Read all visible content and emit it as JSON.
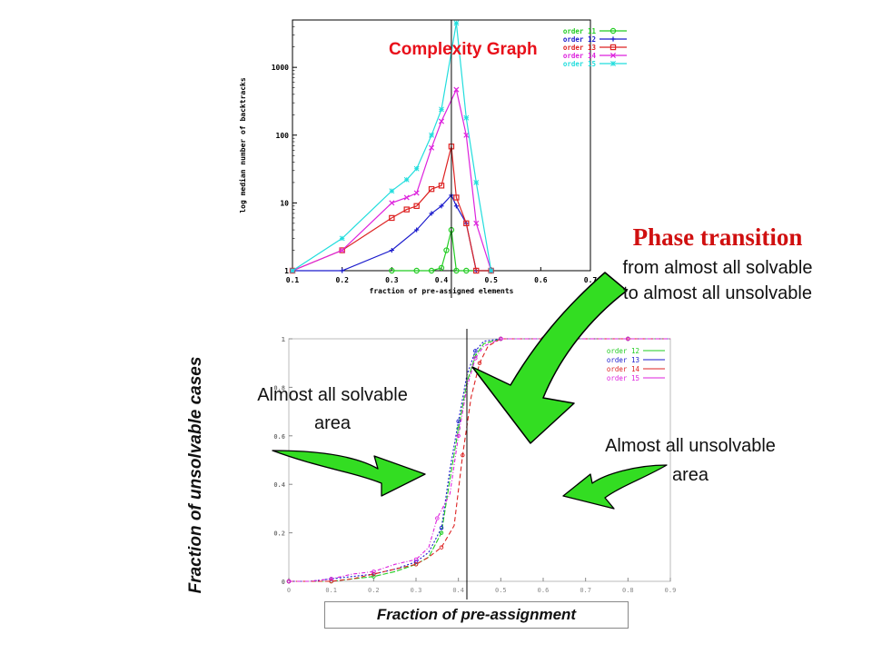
{
  "chart_data": [
    {
      "type": "line",
      "title": "Complexity Graph",
      "xlabel": "fraction of pre-assigned elements",
      "ylabel": "log median number of backtracks",
      "xlim": [
        0.1,
        0.7
      ],
      "ylim": [
        1,
        5000
      ],
      "yscale": "log",
      "grid": false,
      "legend_position": "top-right",
      "x_ticks": [
        "0.1",
        "0.2",
        "0.3",
        "0.4",
        "0.5",
        "0.6",
        "0.7"
      ],
      "y_ticks": [
        "1",
        "10",
        "100",
        "1000"
      ],
      "series": [
        {
          "name": "order 11",
          "color": "#22cc22",
          "marker": "circle",
          "x": [
            0.3,
            0.35,
            0.38,
            0.4,
            0.41,
            0.42,
            0.43,
            0.45,
            0.5
          ],
          "y": [
            1,
            1,
            1,
            1.1,
            2,
            4,
            1,
            1,
            1
          ]
        },
        {
          "name": "order 12",
          "color": "#1a1acc",
          "marker": "plus",
          "x": [
            0.1,
            0.2,
            0.3,
            0.35,
            0.38,
            0.4,
            0.42,
            0.43,
            0.45,
            0.47,
            0.5
          ],
          "y": [
            1,
            1,
            2,
            4,
            7,
            9,
            13,
            9,
            5,
            1,
            1
          ]
        },
        {
          "name": "order 13",
          "color": "#dd2222",
          "marker": "square",
          "x": [
            0.1,
            0.2,
            0.3,
            0.33,
            0.35,
            0.38,
            0.4,
            0.42,
            0.43,
            0.45,
            0.47,
            0.5
          ],
          "y": [
            1,
            2,
            6,
            8,
            9,
            16,
            18,
            68,
            12,
            5,
            1,
            1
          ]
        },
        {
          "name": "order 14",
          "color": "#dd22dd",
          "marker": "cross",
          "x": [
            0.1,
            0.2,
            0.3,
            0.33,
            0.35,
            0.38,
            0.4,
            0.43,
            0.45,
            0.47,
            0.5
          ],
          "y": [
            1,
            2,
            10,
            12,
            14,
            65,
            160,
            470,
            100,
            5,
            1
          ]
        },
        {
          "name": "order 15",
          "color": "#22dddd",
          "marker": "star",
          "x": [
            0.1,
            0.2,
            0.3,
            0.33,
            0.35,
            0.38,
            0.4,
            0.43,
            0.45,
            0.47,
            0.5
          ],
          "y": [
            1,
            3,
            15,
            22,
            32,
            100,
            240,
            4500,
            180,
            20,
            1
          ]
        }
      ],
      "annotation": "vertical line at x = 0.42"
    },
    {
      "type": "line",
      "title": "",
      "xlabel": "Fraction of pre-assignment",
      "ylabel": "Fraction of unsolvable cases",
      "xlim": [
        0,
        0.9
      ],
      "ylim": [
        0,
        1
      ],
      "grid": false,
      "legend_position": "top-right",
      "x_ticks": [
        "0",
        "0.1",
        "0.2",
        "0.3",
        "0.4",
        "0.5",
        "0.6",
        "0.7",
        "0.8",
        "0.9"
      ],
      "y_ticks": [
        "0",
        "0.2",
        "0.4",
        "0.6",
        "0.8",
        "1"
      ],
      "series": [
        {
          "name": "order 12",
          "color": "#22cc22",
          "x": [
            0,
            0.05,
            0.1,
            0.15,
            0.2,
            0.25,
            0.3,
            0.33,
            0.36,
            0.38,
            0.4,
            0.42,
            0.44,
            0.46,
            0.5,
            0.55,
            0.6,
            0.7,
            0.8,
            0.9
          ],
          "y": [
            0,
            0,
            0,
            0.01,
            0.02,
            0.04,
            0.07,
            0.1,
            0.2,
            0.42,
            0.63,
            0.82,
            0.93,
            0.98,
            1,
            1,
            1,
            1,
            1,
            1
          ]
        },
        {
          "name": "order 13",
          "color": "#1a1acc",
          "x": [
            0,
            0.05,
            0.1,
            0.15,
            0.2,
            0.25,
            0.3,
            0.33,
            0.36,
            0.38,
            0.4,
            0.42,
            0.44,
            0.46,
            0.5,
            0.55,
            0.6,
            0.7,
            0.8,
            0.9
          ],
          "y": [
            0,
            0,
            0.01,
            0.02,
            0.03,
            0.05,
            0.08,
            0.12,
            0.22,
            0.46,
            0.66,
            0.85,
            0.95,
            0.99,
            1,
            1,
            1,
            1,
            1,
            1
          ]
        },
        {
          "name": "order 14",
          "color": "#dd2222",
          "x": [
            0,
            0.05,
            0.1,
            0.15,
            0.2,
            0.25,
            0.3,
            0.33,
            0.36,
            0.39,
            0.41,
            0.43,
            0.45,
            0.47,
            0.5,
            0.55,
            0.6,
            0.7,
            0.8,
            0.9
          ],
          "y": [
            0,
            0,
            0,
            0.01,
            0.03,
            0.05,
            0.07,
            0.1,
            0.14,
            0.23,
            0.52,
            0.76,
            0.9,
            0.97,
            1,
            1,
            1,
            1,
            1,
            1
          ]
        },
        {
          "name": "order 15",
          "color": "#dd22dd",
          "x": [
            0,
            0.05,
            0.1,
            0.15,
            0.2,
            0.25,
            0.3,
            0.33,
            0.35,
            0.38,
            0.4,
            0.42,
            0.44,
            0.46,
            0.5,
            0.55,
            0.6,
            0.7,
            0.8,
            0.9
          ],
          "y": [
            0,
            0,
            0.01,
            0.03,
            0.04,
            0.07,
            0.09,
            0.14,
            0.26,
            0.36,
            0.6,
            0.8,
            0.92,
            0.97,
            1,
            1,
            1,
            1,
            1,
            1
          ]
        }
      ],
      "annotation": "vertical line at x = 0.42"
    }
  ],
  "annotations": {
    "phase_title": "Phase transition",
    "phase_line1": "from almost all solvable",
    "phase_line2": "to almost all unsolvable",
    "solvable_line1": "Almost all solvable",
    "solvable_line2": "area",
    "unsolvable_line1": "Almost all unsolvable",
    "unsolvable_line2": "area",
    "arrow_color": "#33dd22"
  }
}
